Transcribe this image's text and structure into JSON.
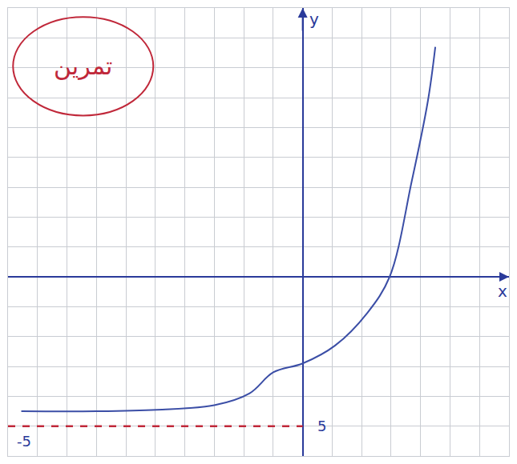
{
  "chart_data": {
    "type": "line",
    "title": "تمرین",
    "x_label": "x",
    "y_label": "y",
    "xlim": [
      -10,
      7
    ],
    "ylim": [
      -6,
      9
    ],
    "xticks": [
      -10,
      -9,
      -8,
      -7,
      -6,
      -5,
      -4,
      -3,
      -2,
      -1,
      0,
      1,
      2,
      3,
      4,
      5,
      6,
      7
    ],
    "yticks": [
      -6,
      -5,
      -4,
      -3,
      -2,
      -1,
      0,
      1,
      2,
      3,
      4,
      5,
      6,
      7,
      8,
      9
    ],
    "grid": true,
    "tick_labels": false,
    "annotations": [
      {
        "text": "5",
        "x": 0.45,
        "y": -5
      },
      {
        "text": "-5",
        "x": -9.75,
        "y": -5.5
      }
    ],
    "series": [
      {
        "color": "#3b4ea6",
        "line_style": "solid",
        "x": [
          -9.55,
          -7,
          -4.95,
          -3,
          -1.8,
          -1,
          0,
          1.1,
          2.2,
          2.95,
          3.7,
          4.25,
          4.5
        ],
        "values": [
          -4.5,
          -4.5,
          -4.45,
          -4.3,
          -3.9,
          -3.2,
          -2.9,
          -2.3,
          -1.2,
          0,
          3.2,
          5.9,
          7.7
        ]
      },
      {
        "color": "#c0283a",
        "line_style": "dash",
        "x": [
          -10,
          0
        ],
        "values": [
          -5,
          -5
        ]
      }
    ]
  }
}
